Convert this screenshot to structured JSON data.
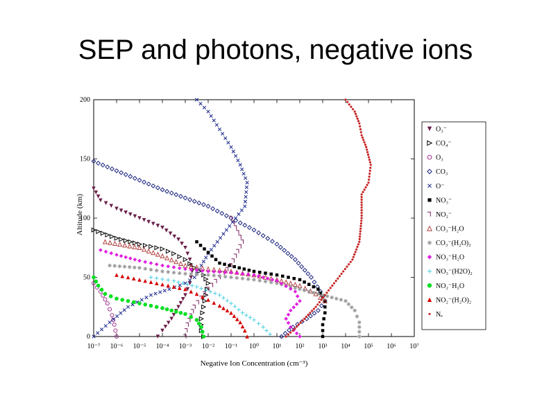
{
  "slide": {
    "title": "SEP and photons, negative ions"
  },
  "chart_data": {
    "type": "scatter",
    "title": "",
    "xlabel": "Negative Ion Concentration (cm⁻³)",
    "ylabel": "Altitude (km)",
    "xscale": "log",
    "xlim_exp": [
      -7,
      7
    ],
    "ylim": [
      0,
      200
    ],
    "x_tick_labels": [
      "10⁻⁷",
      "10⁻⁶",
      "10⁻⁵",
      "10⁻⁴",
      "10⁻³",
      "10⁻²",
      "10⁻¹",
      "10⁰",
      "10¹",
      "10²",
      "10³",
      "10⁴",
      "10⁵",
      "10⁶",
      "10⁷"
    ],
    "y_tick_labels": [
      "0",
      "50",
      "100",
      "150",
      "200"
    ],
    "legend_position": "right",
    "series": [
      {
        "name": "O₃⁻",
        "marker": "tri-down",
        "color": "#6b1f4a",
        "points": [
          [
            -7,
            125
          ],
          [
            -6.7,
            115
          ],
          [
            -6,
            108
          ],
          [
            -5,
            100
          ],
          [
            -4,
            92
          ],
          [
            -3.3,
            82
          ],
          [
            -3,
            75
          ],
          [
            -2.8,
            65
          ],
          [
            -2.7,
            55
          ],
          [
            -2.8,
            45
          ],
          [
            -3,
            35
          ],
          [
            -3.3,
            25
          ],
          [
            -3.6,
            15
          ],
          [
            -4,
            5
          ],
          [
            -4.2,
            0
          ]
        ]
      },
      {
        "name": "CO₄⁻",
        "marker": "tri-right",
        "color": "#000000",
        "points": [
          [
            -7,
            90
          ],
          [
            -6,
            83
          ],
          [
            -5,
            78
          ],
          [
            -4,
            74
          ],
          [
            -3.5,
            70
          ],
          [
            -3,
            65
          ],
          [
            -2.6,
            58
          ],
          [
            -2.2,
            52
          ],
          [
            -2,
            45
          ],
          [
            -2.1,
            35
          ],
          [
            -2.2,
            25
          ],
          [
            -2.3,
            15
          ],
          [
            -2.3,
            5
          ],
          [
            -2.2,
            0
          ]
        ]
      },
      {
        "name": "O₃",
        "marker": "circle-open",
        "color": "#9b2c8a",
        "points": [
          [
            -7,
            45
          ],
          [
            -6.7,
            38
          ],
          [
            -6.4,
            28
          ],
          [
            -6.2,
            18
          ],
          [
            -6.1,
            10
          ],
          [
            -6,
            0
          ]
        ]
      },
      {
        "name": "CO₃",
        "marker": "diamond-open",
        "color": "#1a237e",
        "points": [
          [
            -7,
            148
          ],
          [
            -6,
            140
          ],
          [
            -5,
            132
          ],
          [
            -4,
            124
          ],
          [
            -3,
            117
          ],
          [
            -2,
            110
          ],
          [
            -1,
            100
          ],
          [
            0,
            90
          ],
          [
            1,
            78
          ],
          [
            1.8,
            65
          ],
          [
            2.5,
            50
          ],
          [
            2.9,
            38
          ],
          [
            3.1,
            30
          ],
          [
            2.8,
            22
          ],
          [
            2.3,
            15
          ],
          [
            1.7,
            8
          ],
          [
            1.2,
            0
          ]
        ]
      },
      {
        "name": "O⁻",
        "marker": "x",
        "color": "#283593",
        "points": [
          [
            -2.5,
            200
          ],
          [
            -2,
            190
          ],
          [
            -1.5,
            175
          ],
          [
            -1,
            160
          ],
          [
            -0.6,
            145
          ],
          [
            -0.3,
            130
          ],
          [
            -0.4,
            110
          ],
          [
            -0.8,
            100
          ],
          [
            -1.2,
            90
          ],
          [
            -1.6,
            80
          ],
          [
            -2,
            70
          ],
          [
            -2.3,
            60
          ],
          [
            -2.6,
            50
          ],
          [
            -3,
            45
          ],
          [
            -3.7,
            40
          ],
          [
            -4.5,
            35
          ],
          [
            -5.5,
            25
          ],
          [
            -6.3,
            12
          ],
          [
            -7,
            0
          ]
        ]
      },
      {
        "name": "NO₃⁻",
        "marker": "square",
        "color": "#000000",
        "points": [
          [
            -2.5,
            80
          ],
          [
            -1.5,
            62
          ],
          [
            0,
            55
          ],
          [
            1,
            52
          ],
          [
            2,
            48
          ],
          [
            2.8,
            40
          ],
          [
            3.1,
            30
          ],
          [
            3.1,
            20
          ],
          [
            3,
            10
          ],
          [
            3,
            0
          ]
        ]
      },
      {
        "name": "NO₂⁻",
        "marker": "bracket",
        "color": "#7b1b5a",
        "points": [
          [
            -1,
            100
          ],
          [
            -0.5,
            80
          ],
          [
            -1,
            60
          ],
          [
            -2,
            40
          ],
          [
            -2.6,
            25
          ],
          [
            -2.9,
            10
          ],
          [
            -3,
            0
          ]
        ]
      },
      {
        "name": "CO₃⁻H₂O",
        "marker": "tri-up-open",
        "color": "#b0413e",
        "points": [
          [
            -6.5,
            80
          ],
          [
            -5,
            75
          ],
          [
            -4,
            68
          ],
          [
            -3,
            60
          ],
          [
            -2,
            57
          ],
          [
            -1,
            55
          ],
          [
            0,
            52
          ],
          [
            1,
            48
          ],
          [
            2,
            43
          ],
          [
            2.7,
            36
          ],
          [
            3.1,
            30
          ]
        ]
      },
      {
        "name": "CO₃⁻(H₂O)₂",
        "marker": "asterisk",
        "color": "#999999",
        "points": [
          [
            -6.3,
            60
          ],
          [
            -5,
            58
          ],
          [
            -4,
            55
          ],
          [
            -3,
            53
          ],
          [
            -2,
            52
          ],
          [
            -1,
            50
          ],
          [
            0,
            48
          ],
          [
            1,
            45
          ],
          [
            2,
            40
          ],
          [
            3,
            35
          ],
          [
            4,
            30
          ],
          [
            4.4,
            22
          ],
          [
            4.6,
            12
          ],
          [
            4.6,
            0
          ]
        ]
      },
      {
        "name": "NO₃⁻H₂O",
        "marker": "diamond",
        "color": "#e020e0",
        "points": [
          [
            -6.7,
            73
          ],
          [
            -6,
            69
          ],
          [
            -5,
            64
          ],
          [
            -4,
            60
          ],
          [
            -3,
            57
          ],
          [
            -2,
            55
          ],
          [
            -1,
            54
          ],
          [
            0,
            52
          ],
          [
            1,
            47
          ],
          [
            1.8,
            38
          ],
          [
            2,
            30
          ],
          [
            1.6,
            22
          ],
          [
            1.4,
            15
          ],
          [
            1.6,
            8
          ],
          [
            2,
            0
          ]
        ]
      },
      {
        "name": "NO₃⁻(H2O)₂",
        "marker": "plus",
        "color": "#4dd0e1",
        "points": [
          [
            -4.5,
            50
          ],
          [
            -3.5,
            47
          ],
          [
            -2.5,
            42
          ],
          [
            -1.5,
            35
          ],
          [
            -1,
            28
          ],
          [
            -0.5,
            20
          ],
          [
            0,
            14
          ],
          [
            0.4,
            8
          ],
          [
            0.7,
            2
          ]
        ]
      },
      {
        "name": "NO₂⁻H₂O",
        "marker": "circle",
        "color": "#00e020",
        "points": [
          [
            -7,
            50
          ],
          [
            -6.8,
            43
          ],
          [
            -6.5,
            36
          ],
          [
            -6,
            32
          ],
          [
            -5,
            28
          ],
          [
            -4,
            24
          ],
          [
            -3,
            19
          ],
          [
            -2.5,
            14
          ],
          [
            -2.3,
            8
          ],
          [
            -2.2,
            0
          ]
        ]
      },
      {
        "name": "NO₂⁻(H₂O)₂",
        "marker": "tri-up",
        "color": "#d50000",
        "points": [
          [
            -6,
            52
          ],
          [
            -5,
            48
          ],
          [
            -4,
            44
          ],
          [
            -3,
            40
          ],
          [
            -2.5,
            36
          ],
          [
            -2,
            31
          ],
          [
            -1.5,
            26
          ],
          [
            -1,
            20
          ],
          [
            -0.6,
            12
          ],
          [
            -0.4,
            5
          ],
          [
            -0.3,
            0
          ]
        ]
      },
      {
        "name": "Nₑ",
        "marker": "dot",
        "color": "#c62828",
        "points": [
          [
            4,
            200
          ],
          [
            4.4,
            190
          ],
          [
            4.6,
            180
          ],
          [
            4.7,
            170
          ],
          [
            4.9,
            160
          ],
          [
            5.1,
            145
          ],
          [
            5,
            130
          ],
          [
            4.7,
            120
          ],
          [
            4.7,
            100
          ],
          [
            4.6,
            80
          ],
          [
            4.3,
            65
          ],
          [
            3.9,
            55
          ],
          [
            3.5,
            45
          ],
          [
            3.1,
            35
          ],
          [
            2.7,
            25
          ],
          [
            2.2,
            15
          ],
          [
            1.7,
            5
          ],
          [
            1.4,
            0
          ]
        ]
      }
    ]
  }
}
